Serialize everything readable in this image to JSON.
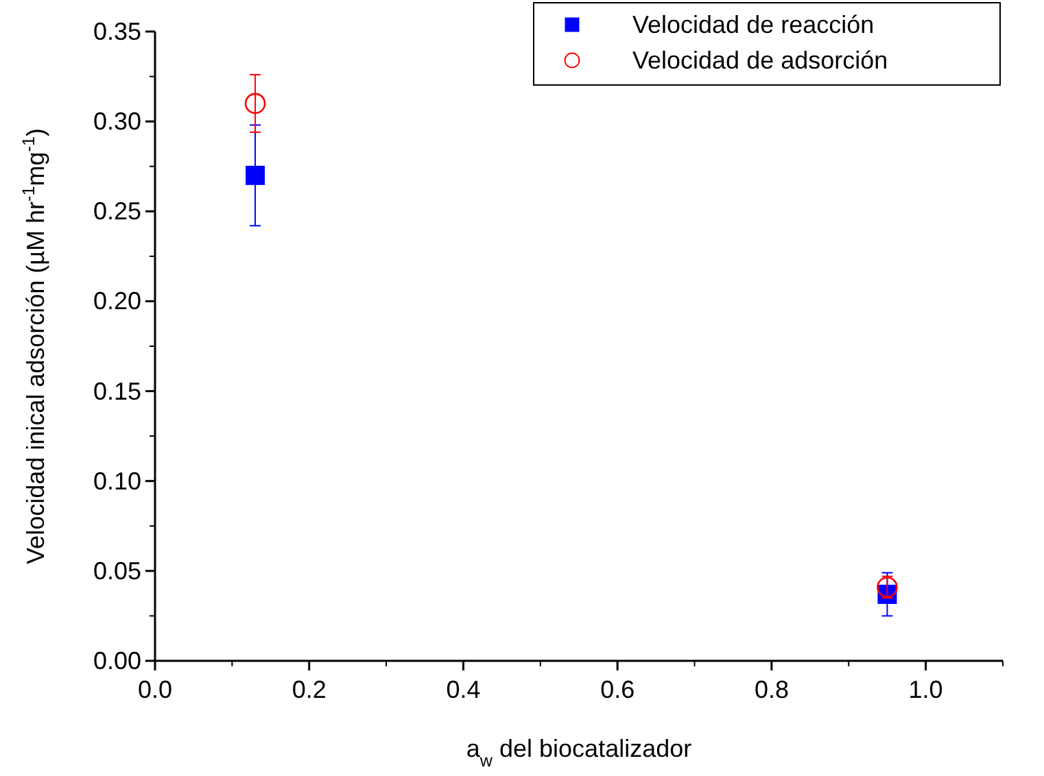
{
  "chart_data": {
    "type": "scatter",
    "xlabel": "a$_{w}$ del biocatalizador",
    "ylabel": "Velocidad inical adsorción (µM hr$^{-1}$mg$^{-1}$)",
    "x": [
      0.13,
      0.95
    ],
    "series": [
      {
        "name": "Velocidad de reacción",
        "color": "#0000ff",
        "marker": "square",
        "values": [
          0.27,
          0.037
        ],
        "errors": [
          0.028,
          0.012
        ]
      },
      {
        "name": "Velocidad de adsorción",
        "color": "#ff0000",
        "marker": "circle",
        "values": [
          0.31,
          0.041
        ],
        "errors": [
          0.016,
          0.006
        ]
      }
    ],
    "xlim": [
      0,
      1.1
    ],
    "xticks": [
      {
        "value": 0,
        "label": "0.0"
      },
      {
        "value": 0.2,
        "label": "0.2"
      },
      {
        "value": 0.4,
        "label": "0.4"
      },
      {
        "value": 0.6,
        "label": "0.6"
      },
      {
        "value": 0.8,
        "label": "0.8"
      },
      {
        "value": 1,
        "label": "1.0"
      }
    ],
    "ylim": [
      0,
      0.35
    ],
    "yticks": [
      {
        "value": 0,
        "label": "0.00"
      },
      {
        "value": 0.05,
        "label": "0.05"
      },
      {
        "value": 0.1,
        "label": "0.10"
      },
      {
        "value": 0.15,
        "label": "0.15"
      },
      {
        "value": 0.2,
        "label": "0.20"
      },
      {
        "value": 0.25,
        "label": "0.25"
      },
      {
        "value": 0.3,
        "label": "0.30"
      },
      {
        "value": 0.35,
        "label": "0.35"
      }
    ],
    "grid": false,
    "legend": "top right"
  }
}
